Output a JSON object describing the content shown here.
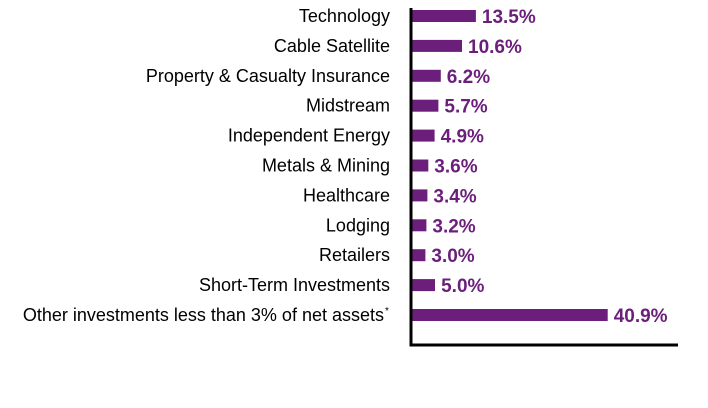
{
  "colors": {
    "bar": "#6b1f7b",
    "value_text": "#6b1f7b",
    "axis": "#000000",
    "label_text": "#000000"
  },
  "chart_data": {
    "type": "bar",
    "orientation": "horizontal",
    "title": "",
    "xlabel": "",
    "ylabel": "",
    "xlim": [
      0,
      45
    ],
    "grid": false,
    "legend": "none",
    "categories": [
      "Technology",
      "Cable Satellite",
      "Property & Casualty Insurance",
      "Midstream",
      "Independent Energy",
      "Metals & Mining",
      "Healthcare",
      "Lodging",
      "Retailers",
      "Short-Term Investments",
      "Other investments less than 3% of net assets"
    ],
    "category_superscripts": [
      "",
      "",
      "",
      "",
      "",
      "",
      "",
      "",
      "",
      "",
      "*"
    ],
    "values": [
      13.5,
      10.6,
      6.2,
      5.7,
      4.9,
      3.6,
      3.4,
      3.2,
      3.0,
      5.0,
      40.9
    ],
    "value_labels": [
      "13.5%",
      "10.6%",
      "6.2%",
      "5.7%",
      "4.9%",
      "3.6%",
      "3.4%",
      "3.2%",
      "3.0%",
      "5.0%",
      "40.9%"
    ]
  }
}
